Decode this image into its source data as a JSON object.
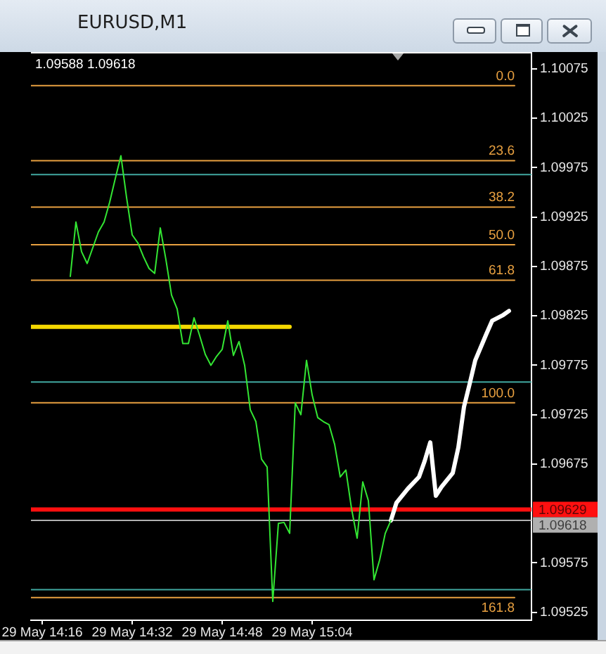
{
  "chart_data": {
    "type": "line",
    "title": "EURUSD,M1",
    "annotations": [
      "1.09588 1.09618"
    ],
    "marker": "none",
    "xlim": [
      "--05-29T14:14",
      "--05-29T15:43"
    ],
    "xticks": [
      {
        "value": "--05-29T14:16",
        "label": "29 May 14:16"
      },
      {
        "value": "--05-29T14:32",
        "label": "29 May 14:32"
      },
      {
        "value": "--05-29T14:48",
        "label": "29 May 14:48"
      },
      {
        "value": "--05-29T15:04",
        "label": "29 May 15:04"
      }
    ],
    "ylim": [
      1.09517,
      1.10092
    ],
    "yticks": [
      1.10075,
      1.10025,
      1.09975,
      1.09925,
      1.09875,
      1.09825,
      1.09775,
      1.09725,
      1.09675,
      1.09575,
      1.09525
    ],
    "series": [
      {
        "color": "#33e633",
        "x": [
          "--05-29T14:21",
          "--05-29T14:22",
          "--05-29T14:23",
          "--05-29T14:24",
          "--05-29T14:25",
          "--05-29T14:26",
          "--05-29T14:27",
          "--05-29T14:28",
          "--05-29T14:29",
          "--05-29T14:30",
          "--05-29T14:31",
          "--05-29T14:32",
          "--05-29T14:33",
          "--05-29T14:34",
          "--05-29T14:35",
          "--05-29T14:36",
          "--05-29T14:37",
          "--05-29T14:38",
          "--05-29T14:39",
          "--05-29T14:40",
          "--05-29T14:41",
          "--05-29T14:42",
          "--05-29T14:43",
          "--05-29T14:44",
          "--05-29T14:45",
          "--05-29T14:46",
          "--05-29T14:47",
          "--05-29T14:48",
          "--05-29T14:49",
          "--05-29T14:50",
          "--05-29T14:51",
          "--05-29T14:52",
          "--05-29T14:53",
          "--05-29T14:54",
          "--05-29T14:55",
          "--05-29T14:56",
          "--05-29T14:57",
          "--05-29T14:58",
          "--05-29T14:59",
          "--05-29T15:00",
          "--05-29T15:01",
          "--05-29T15:02",
          "--05-29T15:03",
          "--05-29T15:04",
          "--05-29T15:05",
          "--05-29T15:06",
          "--05-29T15:07",
          "--05-29T15:08",
          "--05-29T15:09",
          "--05-29T15:10",
          "--05-29T15:11",
          "--05-29T15:12",
          "--05-29T15:13",
          "--05-29T15:14",
          "--05-29T15:15",
          "--05-29T15:16",
          "--05-29T15:17",
          "--05-29T15:18"
        ],
        "values": [
          1.09865,
          1.0992,
          1.0989,
          1.09878,
          1.09894,
          1.0991,
          1.0992,
          1.0994,
          1.09964,
          1.09987,
          1.09945,
          1.09907,
          1.09899,
          1.09885,
          1.09873,
          1.09868,
          1.09914,
          1.09882,
          1.09846,
          1.09832,
          1.09797,
          1.09797,
          1.09823,
          1.09805,
          1.09786,
          1.09775,
          1.09784,
          1.09791,
          1.0982,
          1.09785,
          1.09799,
          1.09775,
          1.0973,
          1.09718,
          1.0968,
          1.09672,
          1.09536,
          1.09615,
          1.09616,
          1.09605,
          1.09737,
          1.09725,
          1.0978,
          1.09745,
          1.09722,
          1.09718,
          1.09715,
          1.09695,
          1.09662,
          1.09669,
          1.0963,
          1.096,
          1.09657,
          1.09638,
          1.09558,
          1.09578,
          1.09605,
          1.09618
        ]
      },
      {
        "color": "#ffffff",
        "x": [
          "--05-29T15:18",
          "--05-29T15:19",
          "--05-29T15:21",
          "--05-29T15:23",
          "--05-29T15:24",
          "--05-29T15:25",
          "--05-29T15:26",
          "--05-29T15:27",
          "--05-29T15:29",
          "--05-29T15:30",
          "--05-29T15:31",
          "--05-29T15:32",
          "--05-29T15:33",
          "--05-29T15:35",
          "--05-29T15:36",
          "--05-29T15:38",
          "--05-29T15:39"
        ],
        "values": [
          1.09618,
          1.09636,
          1.0965,
          1.09662,
          1.09678,
          1.09697,
          1.09643,
          1.09652,
          1.09666,
          1.09692,
          1.09733,
          1.09756,
          1.0978,
          1.09807,
          1.0982,
          1.09826,
          1.0983
        ]
      },
      {
        "color": "#f5d800",
        "x": [
          "--05-29T14:14",
          "--05-29T15:00"
        ],
        "values": [
          1.09814,
          1.09814
        ]
      },
      {
        "name": "0.0",
        "color": "#e8a040",
        "x": [
          "--05-29T14:14",
          "--05-29T15:40"
        ],
        "values": [
          1.10058,
          1.10058
        ]
      },
      {
        "name": "23.6",
        "color": "#e8a040",
        "x": [
          "--05-29T14:14",
          "--05-29T15:40"
        ],
        "values": [
          1.09982,
          1.09982
        ]
      },
      {
        "name": "38.2",
        "color": "#e8a040",
        "x": [
          "--05-29T14:14",
          "--05-29T15:40"
        ],
        "values": [
          1.09935,
          1.09935
        ]
      },
      {
        "name": "50.0",
        "color": "#e8a040",
        "x": [
          "--05-29T14:14",
          "--05-29T15:40"
        ],
        "values": [
          1.09897,
          1.09897
        ]
      },
      {
        "name": "61.8",
        "color": "#e8a040",
        "x": [
          "--05-29T14:14",
          "--05-29T15:40"
        ],
        "values": [
          1.09861,
          1.09861
        ]
      },
      {
        "name": "100.0",
        "color": "#e8a040",
        "x": [
          "--05-29T14:14",
          "--05-29T15:40"
        ],
        "values": [
          1.09737,
          1.09737
        ]
      },
      {
        "name": "161.8",
        "color": "#e8a040",
        "x": [
          "--05-29T14:14",
          "--05-29T15:40"
        ],
        "values": [
          1.0954,
          1.0954
        ]
      }
    ],
    "ref_lines": [
      {
        "axis": "y",
        "value": 1.09968,
        "color": "#40a8a0"
      },
      {
        "axis": "y",
        "value": 1.09758,
        "color": "#40a8a0"
      },
      {
        "axis": "y",
        "value": 1.09548,
        "color": "#40a8a0"
      },
      {
        "axis": "y",
        "value": 1.09629,
        "label": "1.09629",
        "color": "#ff1010"
      },
      {
        "axis": "y",
        "value": 1.09618,
        "label": "1.09618",
        "color": "#b0b0b0"
      }
    ]
  }
}
